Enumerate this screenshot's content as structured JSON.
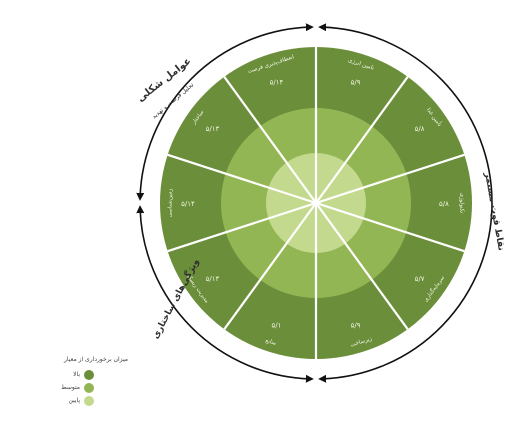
{
  "colors": {
    "high": "#6b8e3a",
    "medium": "#93b655",
    "low": "#c3d98e",
    "lines": "#ffffff",
    "text": "#2e2e2e"
  },
  "segments": [
    {
      "label": "تامین انرژی",
      "score": "۵/۹"
    },
    {
      "label": "تأمین غذا",
      "score": "۵/۸"
    },
    {
      "label": "تکنولوژی",
      "score": "۵/۸"
    },
    {
      "label": "سرمایه‌گذاری",
      "score": "۵/۷"
    },
    {
      "label": "زیرساخت",
      "score": "۵/۹"
    },
    {
      "label": "منابع",
      "score": "۵/۱"
    },
    {
      "label": "مدیریت ریسک",
      "score": "۵/۱۳"
    },
    {
      "label": "زمین‌شناسی",
      "score": "۵/۱۴"
    },
    {
      "label": "ساختار",
      "score": "۵/۱۳"
    },
    {
      "label": "انعطاف‌پذیری فرصت",
      "score": "۵/۱۴"
    }
  ],
  "groups": {
    "right": "نقاط قوت مستمر",
    "top_left": "عوامل شکلی",
    "top_left_sub": "تحلیل فرصت و تهدید",
    "bottom_left": "ویژگی‌های ساختاری"
  },
  "legend": {
    "title": "میزان برخورداری از معیار",
    "items": [
      {
        "label": "بالا",
        "level": "high"
      },
      {
        "label": "متوسط",
        "level": "medium"
      },
      {
        "label": "پایین",
        "level": "low"
      }
    ]
  }
}
